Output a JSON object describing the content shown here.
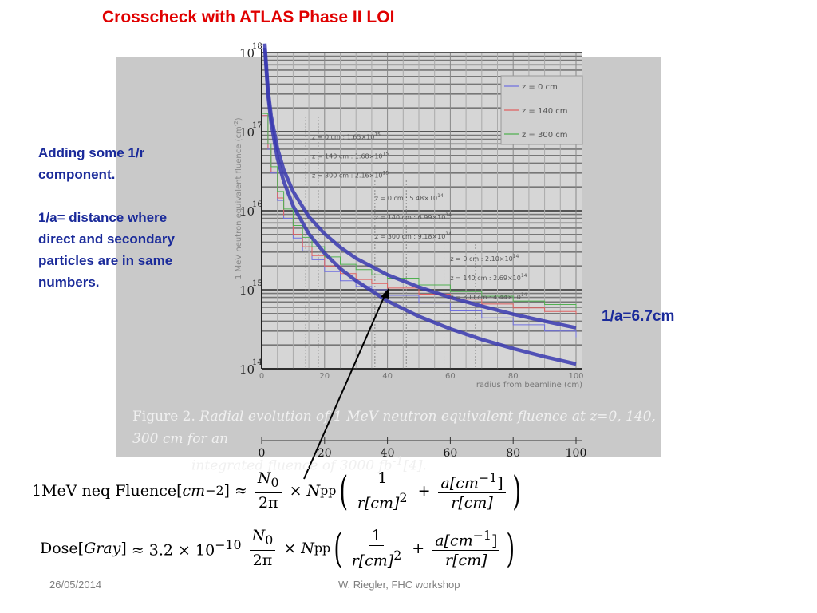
{
  "slide": {
    "title": "Crosscheck with ATLAS Phase II LOI",
    "side_note": [
      "Adding some 1/r component.",
      "1/a= distance where direct and secondary particles are in same numbers."
    ],
    "callout": "1/a=6.7cm",
    "footer_date": "26/05/2014",
    "footer_author": "W. Riegler, FHC workshop"
  },
  "figure": {
    "caption_prefix": "Figure 2.",
    "caption_text_1": "Radial evolution of 1 MeV neutron equivalent fluence at z=0, 140, 300 cm for an",
    "caption_text_2": "integrated fluence of 3000 fb",
    "caption_sup": "-1",
    "caption_ref": "[4]."
  },
  "equations": {
    "fluence_lhs": "1MeV neq Fluence[",
    "fluence_unit": "cm",
    "fluence_unit_exp": "−2",
    "dose_lhs": "Dose[",
    "dose_unit": "Gray",
    "dose_coeff": "≈ 3.2 × 10",
    "dose_coeff_exp": "−10",
    "approx": "≈",
    "n0": "N",
    "n0_sub": "0",
    "two_pi": "2π",
    "times": "×",
    "npp": "N",
    "npp_sub": "pp",
    "one": "1",
    "r_sq_den": "r[cm]",
    "r_sq_exp": "2",
    "plus": "+",
    "a_num": "a[cm",
    "a_num_exp": "−1",
    "r_den": "r[cm]"
  },
  "chart_data": {
    "type": "line",
    "xlabel": "radius from beamline (cm)",
    "ylabel": "1 MeV neutron equivalent fluence (cm",
    "ylabel_exp": "-2",
    "xlim": [
      0,
      100
    ],
    "ylim": [
      100000000000000.0,
      1e+18
    ],
    "y_scale": "log",
    "x_ticks": [
      0,
      20,
      40,
      60,
      80,
      100
    ],
    "y_ticks": [
      {
        "base": "10",
        "exp": "14",
        "value": 100000000000000.0
      },
      {
        "base": "10",
        "exp": "15",
        "value": 1000000000000000.0
      },
      {
        "base": "10",
        "exp": "16",
        "value": 1e+16
      },
      {
        "base": "10",
        "exp": "17",
        "value": 1e+17
      },
      {
        "base": "10",
        "exp": "18",
        "value": 1e+18
      }
    ],
    "grid": true,
    "legend_position": "top-right",
    "series": [
      {
        "name": "z = 0 cm",
        "color": "#6f6fe0",
        "x": [
          1,
          2,
          3,
          5,
          7,
          10,
          13,
          16,
          20,
          25,
          30,
          35,
          40,
          50,
          60,
          70,
          80,
          90,
          100
        ],
        "y": [
          1.6e+17,
          6e+16,
          3e+16,
          1.35e+16,
          8000000000000000.0,
          4500000000000000.0,
          3100000000000000.0,
          2400000000000000.0,
          1700000000000000.0,
          1300000000000000.0,
          1100000000000000.0,
          1000000000000000.0,
          850000000000000.0,
          680000000000000.0,
          540000000000000.0,
          440000000000000.0,
          360000000000000.0,
          300000000000000.0,
          250000000000000.0
        ]
      },
      {
        "name": "z = 140 cm",
        "color": "#e06060",
        "x": [
          1,
          2,
          3,
          5,
          7,
          10,
          13,
          16,
          20,
          25,
          30,
          35,
          40,
          50,
          60,
          70,
          80,
          90,
          100
        ],
        "y": [
          1.6e+17,
          6.2e+16,
          3.1e+16,
          1.45e+16,
          8600000000000000.0,
          5000000000000000.0,
          3500000000000000.0,
          2700000000000000.0,
          2000000000000000.0,
          1600000000000000.0,
          1350000000000000.0,
          1200000000000000.0,
          1050000000000000.0,
          880000000000000.0,
          760000000000000.0,
          660000000000000.0,
          590000000000000.0,
          530000000000000.0,
          480000000000000.0
        ]
      },
      {
        "name": "z = 300 cm",
        "color": "#50b050",
        "x": [
          1,
          2,
          3,
          5,
          7,
          10,
          13,
          16,
          20,
          25,
          30,
          35,
          40,
          50,
          60,
          70,
          80,
          90,
          100
        ],
        "y": [
          1.7e+17,
          7e+16,
          3.6e+16,
          1.75e+16,
          1.05e+16,
          6500000000000000.0,
          4600000000000000.0,
          3500000000000000.0,
          2600000000000000.0,
          2100000000000000.0,
          1800000000000000.0,
          1550000000000000.0,
          1400000000000000.0,
          1150000000000000.0,
          950000000000000.0,
          830000000000000.0,
          720000000000000.0,
          650000000000000.0,
          580000000000000.0
        ]
      },
      {
        "name": "",
        "color": "#3a3ab0",
        "style": "thick",
        "x": [
          1,
          2,
          3,
          5,
          7,
          10,
          15,
          20,
          25,
          30,
          40,
          50,
          60,
          70,
          80,
          90,
          100
        ],
        "y": [
          1.15e+18,
          2.9e+17,
          1.3e+17,
          4.6e+16,
          2.35e+16,
          1.15e+16,
          5100000000000000.0,
          2900000000000000.0,
          1850000000000000.0,
          1300000000000000.0,
          720000000000000.0,
          460000000000000.0,
          320000000000000.0,
          235000000000000.0,
          180000000000000.0,
          142000000000000.0,
          115000000000000.0
        ]
      },
      {
        "name": "",
        "color": "#3a3ab0",
        "style": "thick",
        "x": [
          1,
          2,
          3,
          5,
          7,
          10,
          15,
          20,
          25,
          30,
          40,
          50,
          60,
          70,
          80,
          90,
          100
        ],
        "y": [
          1.3e+18,
          3.4e+17,
          1.6e+17,
          6.2e+16,
          3.3e+16,
          1.75e+16,
          8400000000000000.0,
          5100000000000000.0,
          3450000000000000.0,
          2500000000000000.0,
          1550000000000000.0,
          1080000000000000.0,
          800000000000000.0,
          620000000000000.0,
          490000000000000.0,
          400000000000000.0,
          330000000000000.0
        ]
      }
    ],
    "annotations": [
      {
        "lines": [
          "z = 0 cm : 1.65×10",
          "z = 140 cm : 1.68×10",
          "z = 300 cm : 2.16×10"
        ],
        "exps": [
          "15",
          "15",
          "15"
        ],
        "x": 16,
        "y": 8e+16
      },
      {
        "lines": [
          "z = 0 cm : 5.48×10",
          "z = 140 cm : 6.99×10",
          "z = 300 cm : 9.18×10"
        ],
        "exps": [
          "14",
          "14",
          "14"
        ],
        "x": 36,
        "y": 1.35e+16
      },
      {
        "lines": [
          "z = 0 cm : 2.10×10",
          "z = 140 cm : 2.69×10",
          "z = 300 cm : 4.44×10"
        ],
        "exps": [
          "14",
          "14",
          "14"
        ],
        "x": 60,
        "y": 2300000000000000.0
      }
    ]
  }
}
